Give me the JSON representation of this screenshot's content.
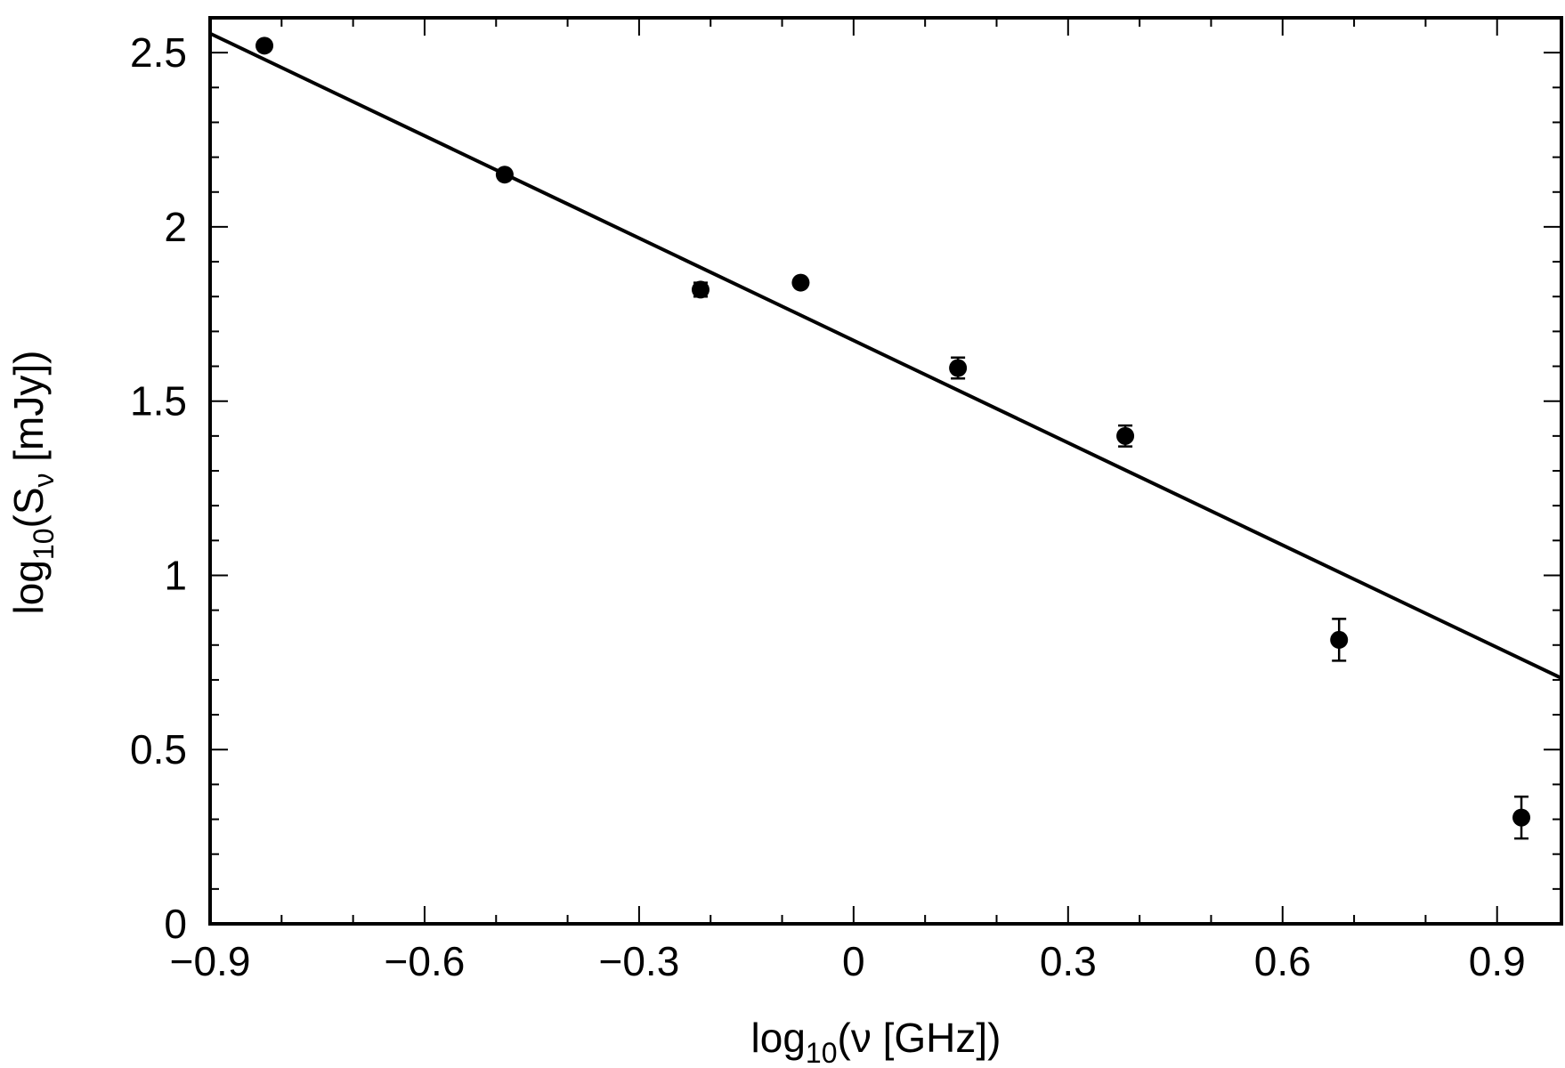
{
  "chart_data": {
    "type": "scatter",
    "title": "",
    "xlabel": {
      "prefix": "log",
      "sub": "10",
      "suffix": "(ν [GHz])"
    },
    "ylabel": {
      "prefix": "log",
      "sub": "10",
      "mid": "(S",
      "sub2": "ν",
      "suffix": " [mJy])"
    },
    "xlim": [
      -0.9,
      0.99
    ],
    "ylim": [
      0,
      2.6
    ],
    "xticks": [
      -0.9,
      -0.6,
      -0.3,
      0,
      0.3,
      0.6,
      0.9
    ],
    "xtick_labels": [
      "−0.9",
      "−0.6",
      "−0.3",
      "0",
      "0.3",
      "0.6",
      "0.9"
    ],
    "yticks": [
      0,
      0.5,
      1,
      1.5,
      2,
      2.5
    ],
    "ytick_labels": [
      "0",
      "0.5",
      "1",
      "1.5",
      "2",
      "2.5"
    ],
    "x_minor_step": 0.1,
    "y_minor_step": 0.1,
    "grid": false,
    "legend": "none",
    "series": [
      {
        "kind": "points_with_error",
        "color": "#000000",
        "x": [
          -0.824,
          -0.488,
          -0.214,
          -0.074,
          0.146,
          0.38,
          0.679,
          0.934
        ],
        "y": [
          2.52,
          2.15,
          1.82,
          1.84,
          1.595,
          1.4,
          0.815,
          0.305
        ],
        "err": [
          0.005,
          0.01,
          0.02,
          0.01,
          0.03,
          0.03,
          0.06,
          0.06
        ]
      },
      {
        "kind": "fit_line",
        "color": "#000000",
        "x": [
          -0.9,
          0.99
        ],
        "y": [
          2.555,
          0.705
        ]
      }
    ]
  }
}
